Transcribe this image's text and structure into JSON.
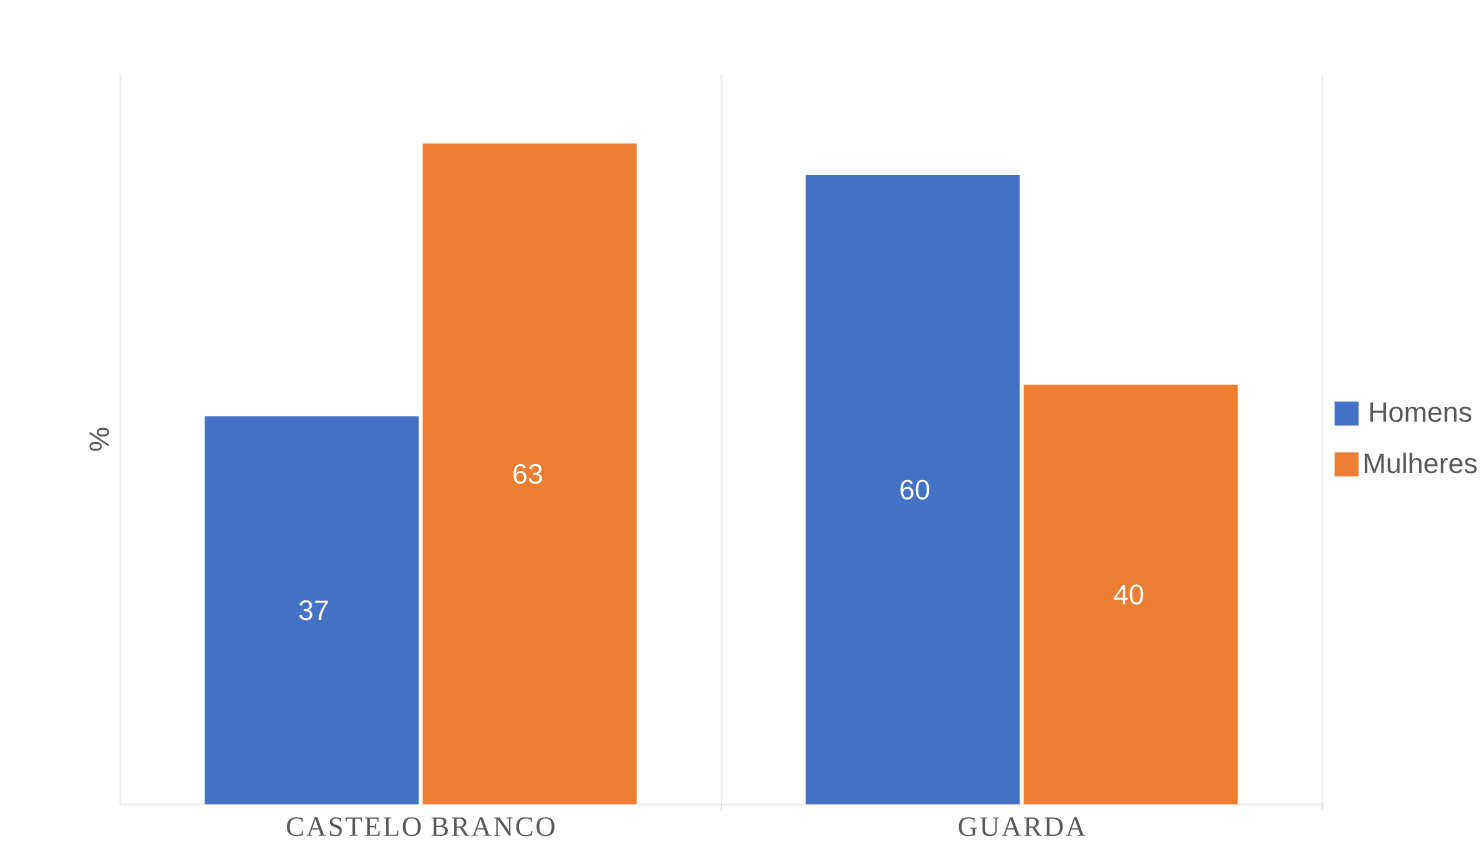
{
  "chart_data": {
    "type": "bar",
    "ylabel": "%",
    "categories": [
      "CASTELO BRANCO",
      "GUARDA"
    ],
    "series": [
      {
        "name": "Homens",
        "color": "#4472c4",
        "values": [
          37,
          60
        ]
      },
      {
        "name": "Mulheres",
        "color": "#ed7d31",
        "values": [
          63,
          40
        ]
      }
    ],
    "data_labels": true,
    "grid": "x",
    "legend": "right"
  }
}
